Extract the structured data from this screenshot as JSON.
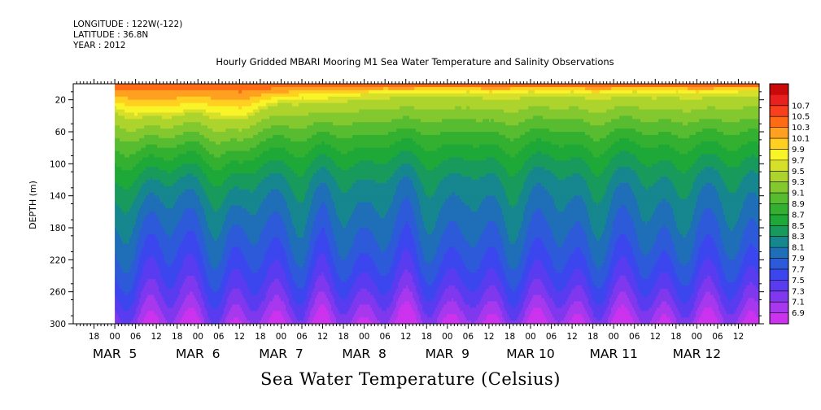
{
  "header": {
    "longitude": "LONGITUDE : 122W(-122)",
    "latitude": "LATITUDE : 36.8N",
    "year": "YEAR : 2012"
  },
  "chart_data": {
    "type": "heatmap",
    "title": "Hourly Gridded MBARI Mooring M1 Sea Water Temperature and Salinity Observations",
    "xlabel": "Sea Water Temperature (Celsius)",
    "ylabel": "DEPTH (m)",
    "ylim": [
      300,
      0
    ],
    "y_ticks": [
      20,
      60,
      100,
      140,
      180,
      220,
      260,
      300
    ],
    "x_hour_ticks": [
      "18",
      "00",
      "06",
      "12",
      "18",
      "00",
      "06",
      "12",
      "18",
      "00",
      "06",
      "12",
      "18",
      "00",
      "06",
      "12",
      "18",
      "00",
      "06",
      "12",
      "18",
      "00",
      "06",
      "12",
      "18",
      "00",
      "06",
      "12",
      "18",
      "00",
      "06",
      "12"
    ],
    "x_day_labels": [
      "MAR  5",
      "MAR  6",
      "MAR  7",
      "MAR  8",
      "MAR  9",
      "MAR 10",
      "MAR 11",
      "MAR 12"
    ],
    "colorbar": {
      "levels": [
        "6.9",
        "7.1",
        "7.3",
        "7.5",
        "7.7",
        "7.9",
        "8.1",
        "8.3",
        "8.5",
        "8.7",
        "8.9",
        "9.1",
        "9.3",
        "9.5",
        "9.7",
        "9.9",
        "10.1",
        "10.3",
        "10.5",
        "10.7"
      ],
      "colors": [
        "#cc33ee",
        "#a838ee",
        "#8038ee",
        "#5a3cf0",
        "#3c46ee",
        "#2c5ad8",
        "#1e6eb8",
        "#16878e",
        "#189a5c",
        "#1ea838",
        "#34b030",
        "#58bc30",
        "#84c830",
        "#acd42c",
        "#d6e02a",
        "#f8f428",
        "#ffd020",
        "#ffa020",
        "#ff6a14",
        "#f8401c",
        "#e82020",
        "#c80a0a"
      ]
    },
    "data_start_hour": 12,
    "profiles_per_6h": [
      {
        "m": 30,
        "d": 0.0
      },
      {
        "m": 40,
        "d": 0.4
      },
      {
        "m": 42,
        "d": 0.8
      },
      {
        "m": 40,
        "d": 1.0
      },
      {
        "m": 34,
        "d": 0.6
      },
      {
        "m": 38,
        "d": 0.2
      },
      {
        "m": 45,
        "d": 0.4
      },
      {
        "m": 30,
        "d": 0.9
      },
      {
        "m": 22,
        "d": 0.5
      },
      {
        "m": 18,
        "d": 0.3
      },
      {
        "m": 20,
        "d": 0.8
      },
      {
        "m": 16,
        "d": 0.5
      },
      {
        "m": 14,
        "d": 0.2
      },
      {
        "m": 12,
        "d": 0.7
      },
      {
        "m": 14,
        "d": 0.9
      },
      {
        "m": 10,
        "d": 0.4
      },
      {
        "m": 12,
        "d": 0.3
      },
      {
        "m": 10,
        "d": 0.8
      },
      {
        "m": 14,
        "d": 0.4
      },
      {
        "m": 12,
        "d": 0.2
      },
      {
        "m": 10,
        "d": 0.5
      },
      {
        "m": 12,
        "d": 0.9
      },
      {
        "m": 10,
        "d": 0.4
      },
      {
        "m": 14,
        "d": 0.2
      },
      {
        "m": 12,
        "d": 0.6
      },
      {
        "m": 10,
        "d": 0.8
      },
      {
        "m": 12,
        "d": 0.3
      },
      {
        "m": 10,
        "d": 0.2
      },
      {
        "m": 14,
        "d": 0.6
      },
      {
        "m": 12,
        "d": 0.7
      },
      {
        "m": 10,
        "d": 0.3
      },
      {
        "m": 10,
        "d": 0.5
      }
    ]
  }
}
